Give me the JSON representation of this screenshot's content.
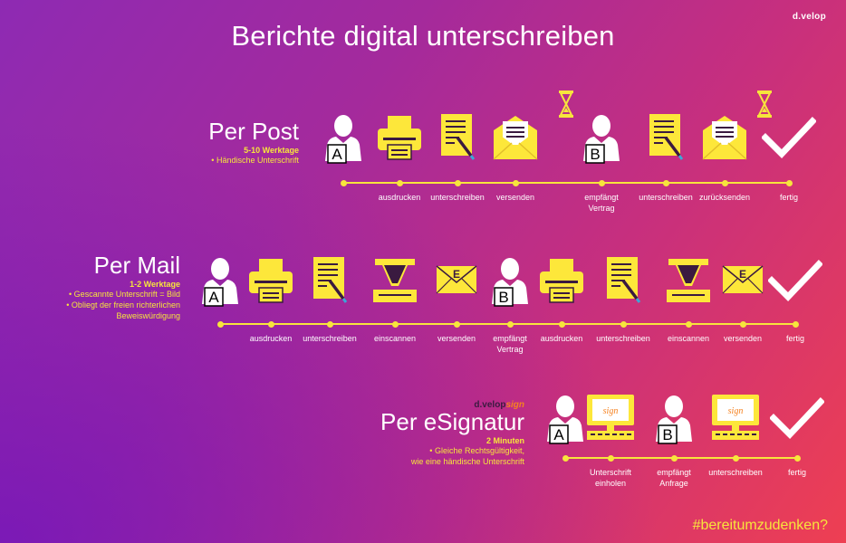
{
  "title": "Berichte digital unterschreiben",
  "logo": "d.velop",
  "hashtag": "#bereitumzudenken?",
  "sections": [
    {
      "title": "Per Post",
      "time": "5-10 Werktage",
      "notes": [
        "• Händische Unterschrift"
      ],
      "steps": [
        {
          "icon": "person-a-icon",
          "letter": "A",
          "label": ""
        },
        {
          "icon": "printer-icon",
          "label": "ausdrucken"
        },
        {
          "icon": "signing-document-icon",
          "label": "unterschreiben"
        },
        {
          "icon": "open-envelope-icon",
          "label": "versenden"
        },
        {
          "icon": "person-b-icon",
          "letter": "B",
          "label": "empfängt Vertrag"
        },
        {
          "icon": "signing-document-icon",
          "label": "unterschreiben"
        },
        {
          "icon": "open-envelope-icon",
          "label": "zurücksenden"
        },
        {
          "icon": "checkmark-icon",
          "label": "fertig"
        }
      ]
    },
    {
      "title": "Per Mail",
      "time": "1-2 Werktage",
      "notes": [
        "• Gescannte Unterschrift = Bild",
        "• Obliegt der freien richterlichen",
        "Beweiswürdigung"
      ],
      "steps": [
        {
          "icon": "person-a-icon",
          "letter": "A",
          "label": ""
        },
        {
          "icon": "printer-icon",
          "label": "ausdrucken"
        },
        {
          "icon": "signing-document-icon",
          "label": "unterschreiben"
        },
        {
          "icon": "scanner-icon",
          "label": "einscannen"
        },
        {
          "icon": "email-envelope-icon",
          "letter": "E",
          "label": "versenden"
        },
        {
          "icon": "person-b-icon",
          "letter": "B",
          "label": "empfängt Vertrag"
        },
        {
          "icon": "printer-icon",
          "label": "ausdrucken"
        },
        {
          "icon": "signing-document-icon",
          "label": "unterschreiben"
        },
        {
          "icon": "scanner-icon",
          "label": "einscannen"
        },
        {
          "icon": "email-envelope-icon",
          "letter": "E",
          "label": "versenden"
        },
        {
          "icon": "checkmark-icon",
          "label": "fertig"
        }
      ]
    },
    {
      "title": "Per eSignatur",
      "brand_main": "d.velop",
      "brand_accent": "sign",
      "time": "2 Minuten",
      "notes": [
        "• Gleiche Rechtsgültigkeit,",
        "wie eine händische Unterschrift"
      ],
      "steps": [
        {
          "icon": "person-a-icon",
          "letter": "A",
          "label": ""
        },
        {
          "icon": "sign-monitor-icon",
          "sign": "sign",
          "label": "Unterschrift einholen"
        },
        {
          "icon": "person-b-icon",
          "letter": "B",
          "label": "empfängt Anfrage"
        },
        {
          "icon": "sign-monitor-icon",
          "sign": "sign",
          "label": "unterschreiben"
        },
        {
          "icon": "checkmark-icon",
          "label": "fertig"
        }
      ]
    }
  ],
  "colors": {
    "accent": "#f7e53c",
    "icon_fill": "#fde73a",
    "dark": "#3a1a40"
  }
}
